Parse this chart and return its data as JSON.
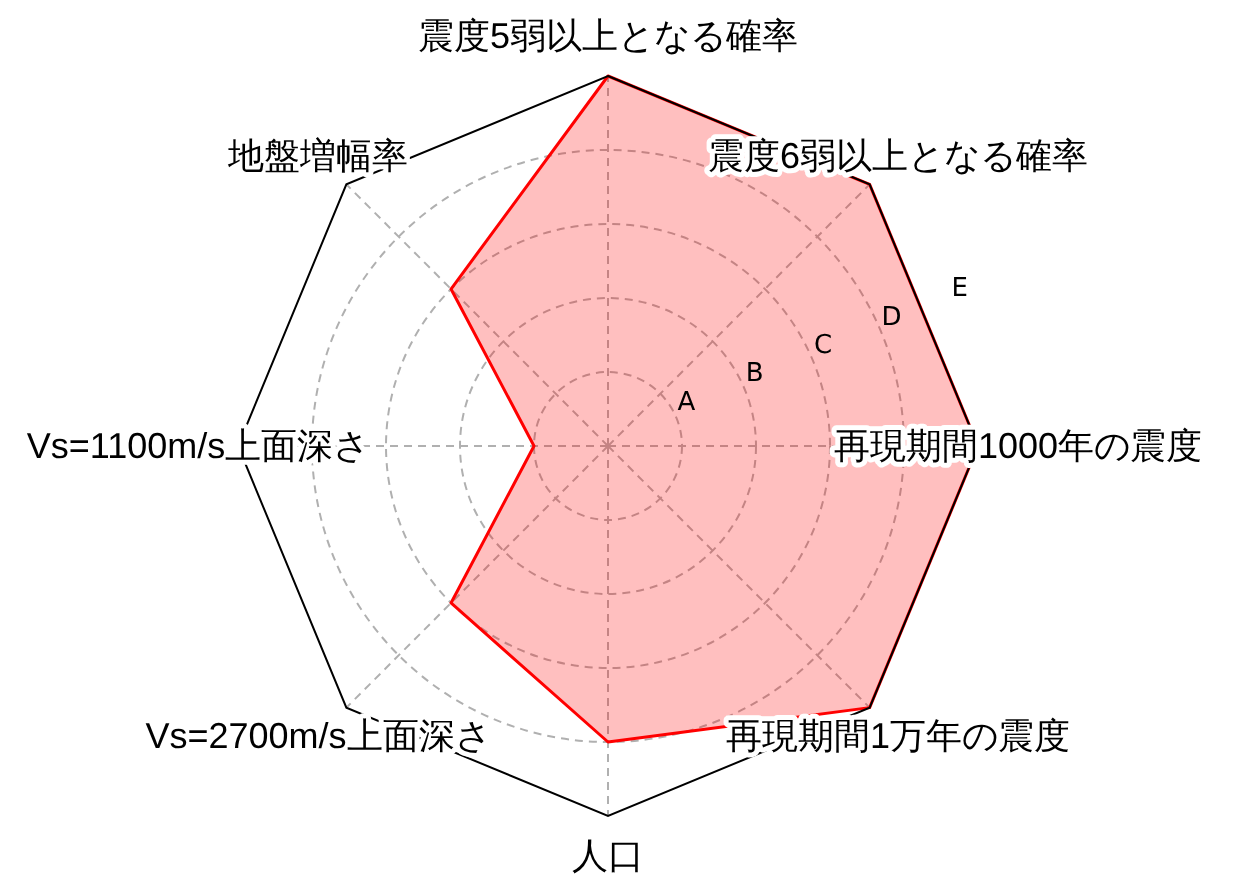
{
  "chart_data": {
    "type": "radar",
    "categories": [
      "震度5弱以上となる確率",
      "震度6弱以上となる確率",
      "再現期間1000年の震度",
      "再現期間1万年の震度",
      "人口",
      "Vs=2700m/s上面深さ",
      "Vs=1100m/s上面深さ",
      "地盤増幅率"
    ],
    "series": [
      {
        "color": "#ff0000",
        "values": [
          5,
          5,
          5,
          5,
          4,
          3,
          1,
          3
        ]
      }
    ],
    "ylim": [
      0,
      5
    ],
    "yticks": [
      {
        "value": 1,
        "label": "A"
      },
      {
        "value": 2,
        "label": "B"
      },
      {
        "value": 3,
        "label": "C"
      },
      {
        "value": 4,
        "label": "D"
      },
      {
        "value": 5,
        "label": "E"
      }
    ],
    "grid": true
  }
}
